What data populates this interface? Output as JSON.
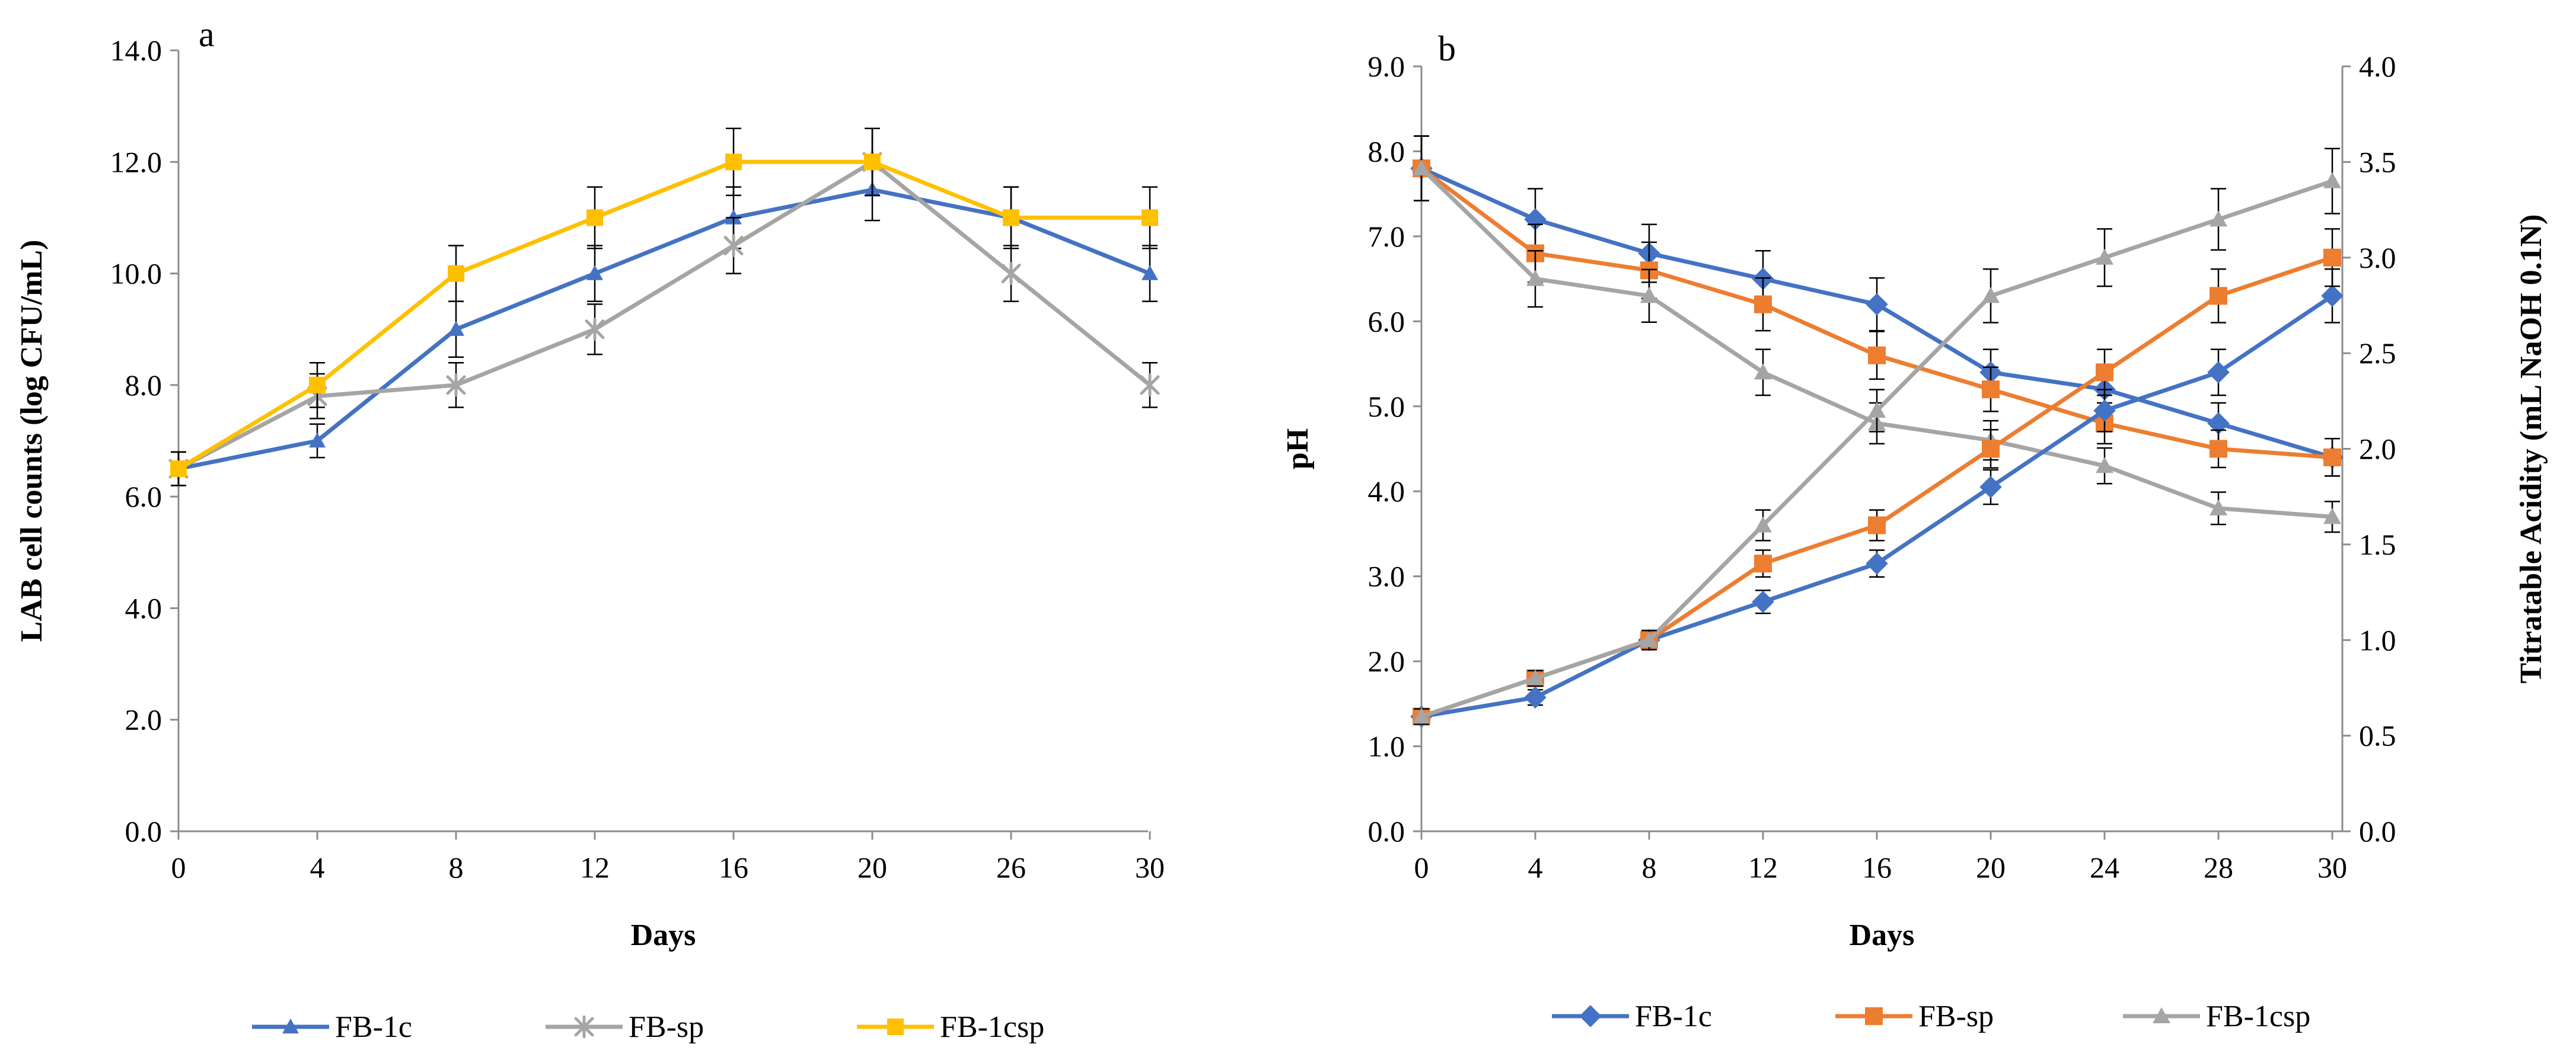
{
  "chart_data": [
    {
      "panel_label": "a",
      "type": "line",
      "xlabel": "Days",
      "ylabel": "LAB cell counts (log CFU/mL)",
      "categories": [
        "0",
        "4",
        "8",
        "12",
        "16",
        "20",
        "26",
        "30"
      ],
      "ylim": [
        0,
        14
      ],
      "yticks": [
        "0.0",
        "2.0",
        "4.0",
        "6.0",
        "8.0",
        "10.0",
        "12.0",
        "14.0"
      ],
      "grid": false,
      "legend_position": "bottom",
      "series": [
        {
          "name": "FB-1c",
          "marker": "triangle",
          "color": "#4472C4",
          "values": [
            6.5,
            7.0,
            9.0,
            10.0,
            11.0,
            11.5,
            11.0,
            10.0
          ],
          "errors": [
            0.3,
            0.3,
            0.5,
            0.5,
            0.55,
            0.55,
            0.55,
            0.5
          ]
        },
        {
          "name": "FB-sp",
          "marker": "star",
          "color": "#A5A5A5",
          "values": [
            6.5,
            7.8,
            8.0,
            9.0,
            10.5,
            12.0,
            10.0,
            8.0
          ],
          "errors": [
            0.3,
            0.4,
            0.4,
            0.45,
            0.5,
            0.6,
            0.5,
            0.4
          ]
        },
        {
          "name": "FB-1csp",
          "marker": "square",
          "color": "#FFC000",
          "values": [
            6.5,
            8.0,
            10.0,
            11.0,
            12.0,
            12.0,
            11.0,
            11.0
          ],
          "errors": [
            0.3,
            0.4,
            0.5,
            0.55,
            0.6,
            0.6,
            0.55,
            0.55
          ]
        }
      ]
    },
    {
      "panel_label": "b",
      "type": "line",
      "xlabel": "Days",
      "ylabel": "pH",
      "y2label": "Titratable Acidity (mL NaOH 0.1N)",
      "categories": [
        "0",
        "4",
        "8",
        "12",
        "16",
        "20",
        "24",
        "28",
        "30"
      ],
      "ylim": [
        0,
        9
      ],
      "yticks": [
        "0.0",
        "1.0",
        "2.0",
        "3.0",
        "4.0",
        "5.0",
        "6.0",
        "7.0",
        "8.0",
        "9.0"
      ],
      "y2lim": [
        0,
        4
      ],
      "y2ticks": [
        "0.0",
        "0.5",
        "1.0",
        "1.5",
        "2.0",
        "2.5",
        "3.0",
        "3.5",
        "4.0"
      ],
      "grid": false,
      "legend_position": "bottom",
      "series": [
        {
          "name": "FB-1c",
          "measure": "pH",
          "axis": "left",
          "marker": "diamond",
          "color": "#4472C4",
          "values": [
            7.8,
            7.2,
            6.8,
            6.5,
            6.2,
            5.4,
            5.2,
            4.8,
            4.4
          ],
          "errors": [
            0.38,
            0.36,
            0.34,
            0.33,
            0.31,
            0.27,
            0.26,
            0.24,
            0.22
          ]
        },
        {
          "name": "FB-sp",
          "measure": "pH",
          "axis": "left",
          "marker": "square",
          "color": "#ED7D31",
          "values": [
            7.8,
            6.8,
            6.6,
            6.2,
            5.6,
            5.2,
            4.8,
            4.5,
            4.4
          ],
          "errors": [
            0.38,
            0.34,
            0.33,
            0.31,
            0.28,
            0.26,
            0.24,
            0.22,
            0.22
          ]
        },
        {
          "name": "FB-1csp",
          "measure": "pH",
          "axis": "left",
          "marker": "triangle",
          "color": "#A5A5A5",
          "values": [
            7.8,
            6.5,
            6.3,
            5.4,
            4.8,
            4.6,
            4.3,
            3.8,
            3.7
          ],
          "errors": [
            0.38,
            0.33,
            0.31,
            0.27,
            0.24,
            0.23,
            0.21,
            0.19,
            0.18
          ]
        },
        {
          "name": "FB-1c",
          "measure": "Titratable Acidity",
          "axis": "right",
          "marker": "diamond",
          "color": "#4472C4",
          "values": [
            0.6,
            0.7,
            1.0,
            1.2,
            1.4,
            1.8,
            2.2,
            2.4,
            2.8
          ],
          "errors": [
            0.04,
            0.04,
            0.05,
            0.06,
            0.07,
            0.09,
            0.11,
            0.12,
            0.14
          ]
        },
        {
          "name": "FB-sp",
          "measure": "Titratable Acidity",
          "axis": "right",
          "marker": "square",
          "color": "#ED7D31",
          "values": [
            0.6,
            0.8,
            1.0,
            1.4,
            1.6,
            2.0,
            2.4,
            2.8,
            3.0
          ],
          "errors": [
            0.04,
            0.04,
            0.05,
            0.07,
            0.08,
            0.1,
            0.12,
            0.14,
            0.15
          ]
        },
        {
          "name": "FB-1csp",
          "measure": "Titratable Acidity",
          "axis": "right",
          "marker": "triangle",
          "color": "#A5A5A5",
          "values": [
            0.6,
            0.8,
            1.0,
            1.6,
            2.2,
            2.8,
            3.0,
            3.2,
            3.4
          ],
          "errors": [
            0.04,
            0.04,
            0.05,
            0.08,
            0.11,
            0.14,
            0.15,
            0.16,
            0.17
          ]
        }
      ]
    }
  ]
}
